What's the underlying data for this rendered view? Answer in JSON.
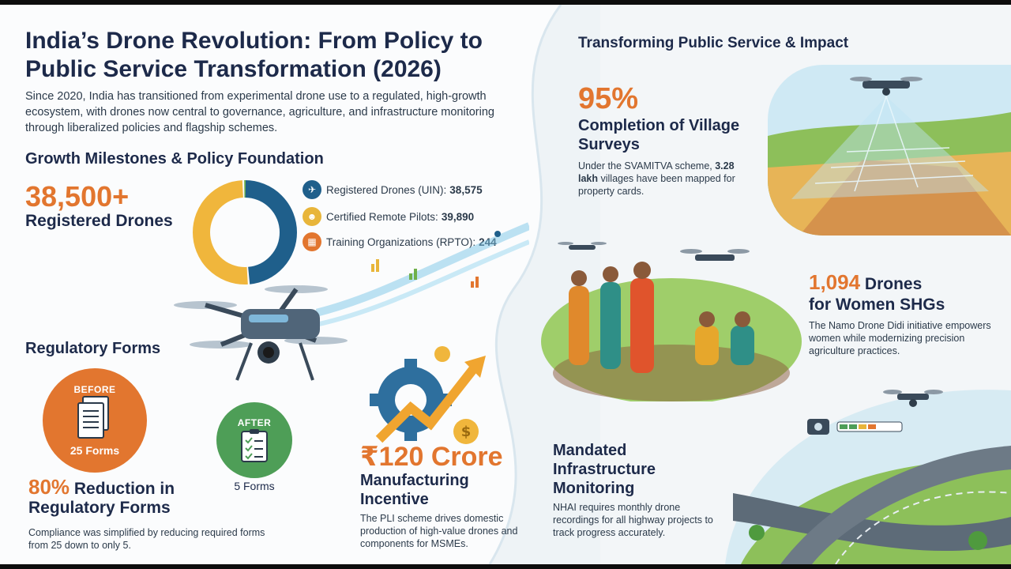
{
  "header": {
    "title": "India’s Drone Revolution: From Policy to Public Service Transformation (2026)",
    "intro": "Since 2020, India has transitioned from experimental drone use to a regulated, high-growth ecosystem, with drones now central to governance, agriculture, and infrastructure monitoring through liberalized policies and flagship schemes."
  },
  "growth": {
    "heading": "Growth Milestones & Policy Foundation",
    "big_number": "38,500+",
    "big_label": "Registered Drones",
    "stats": [
      {
        "label": "Registered Drones (UIN):",
        "value": "38,575",
        "icon": "drone-icon",
        "color": "#1f5f8b"
      },
      {
        "label": "Certified Remote Pilots:",
        "value": "39,890",
        "icon": "pilot-icon",
        "color": "#e8b53a"
      },
      {
        "label": "Training Organizations (RPTO):",
        "value": "244",
        "icon": "building-icon",
        "color": "#e2762f"
      }
    ],
    "donut": [
      {
        "value": 38575,
        "color": "#1f5f8b"
      },
      {
        "value": 39890,
        "color": "#f0b63c"
      },
      {
        "value": 244,
        "color": "#6fb04a"
      }
    ]
  },
  "regulatory": {
    "heading": "Regulatory Forms",
    "before_caption": "BEFORE",
    "before_count": "25 Forms",
    "after_caption": "AFTER",
    "after_count": "5 Forms",
    "reduction_pct": "80%",
    "reduction_label": "Reduction in Regulatory Forms",
    "description": "Compliance was simplified by reducing required forms from 25 down to only 5."
  },
  "incentive": {
    "amount": "₹120 Crore",
    "label": "Manufacturing Incentive",
    "description": "The PLI scheme drives domestic production of high-value drones and components for MSMEs."
  },
  "impact": {
    "heading": "Transforming Public Service & Impact",
    "survey_pct": "95%",
    "survey_label": "Completion of Village Surveys",
    "survey_desc_pre": "Under the SVAMITVA scheme,",
    "survey_desc_bold": "3.28 lakh",
    "survey_desc_post": "villages have been mapped for property cards.",
    "shg_number": "1,094",
    "shg_label_1": "Drones",
    "shg_label_2": "for Women SHGs",
    "shg_desc": "The Namo Drone Didi initiative empowers women while modernizing precision agriculture practices.",
    "infra_label": "Mandated Infrastructure Monitoring",
    "infra_desc": "NHAI requires monthly drone recordings for all highway projects to track progress accurately."
  },
  "colors": {
    "accent_orange": "#e2762f",
    "navy": "#1d2a4a",
    "green": "#4e9e57",
    "blue": "#1f5f8b"
  }
}
